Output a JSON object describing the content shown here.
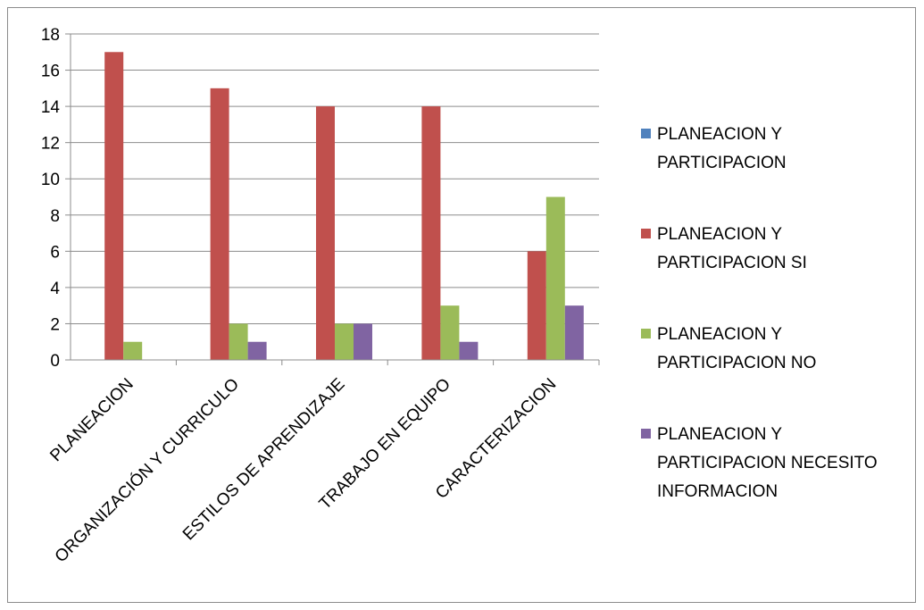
{
  "chart_data": {
    "type": "bar",
    "categories": [
      "PLANEACION",
      "ORGANIZACIÓN Y CURRICULO",
      "ESTILOS DE APRENDIZAJE",
      "TRABAJO EN EQUIPO",
      "CARACTERIZACION"
    ],
    "series": [
      {
        "name": "PLANEACION Y PARTICIPACION",
        "color": "#4f81bd",
        "values": [
          0,
          0,
          0,
          0,
          0
        ],
        "legend_lines": [
          "PLANEACION Y",
          "PARTICIPACION"
        ]
      },
      {
        "name": "PLANEACION Y PARTICIPACION SI",
        "color": "#c0504d",
        "values": [
          17,
          15,
          14,
          14,
          6
        ],
        "legend_lines": [
          "PLANEACION Y",
          "PARTICIPACION SI"
        ]
      },
      {
        "name": "PLANEACION Y PARTICIPACION NO",
        "color": "#9bbb59",
        "values": [
          1,
          2,
          2,
          3,
          9
        ],
        "legend_lines": [
          "PLANEACION Y",
          "PARTICIPACION NO"
        ]
      },
      {
        "name": "PLANEACION Y PARTICIPACION NECESITO INFORMACION",
        "color": "#8064a2",
        "values": [
          0,
          1,
          2,
          1,
          3
        ],
        "legend_lines": [
          "PLANEACION Y",
          "PARTICIPACION NECESITO",
          "INFORMACION"
        ]
      }
    ],
    "y_ticks": [
      "0",
      "2",
      "4",
      "6",
      "8",
      "10",
      "12",
      "14",
      "16",
      "18"
    ],
    "ylim": [
      0,
      18
    ],
    "grid": true,
    "legend_position": "right"
  }
}
